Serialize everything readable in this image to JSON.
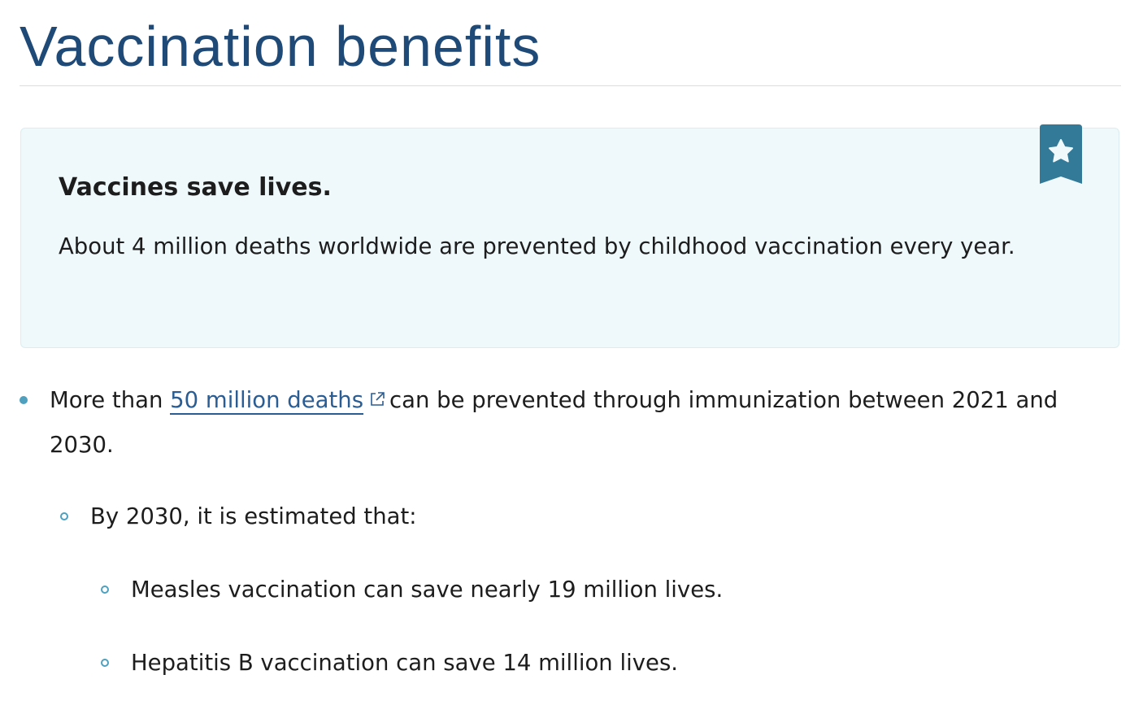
{
  "page_title": "Vaccination benefits",
  "callout": {
    "icon": "bookmark-star-icon",
    "heading": "Vaccines save lives.",
    "text": "About 4 million deaths worldwide are prevented by childhood vaccination every year."
  },
  "list": {
    "item1": {
      "before": "More than",
      "link": "50 million deaths",
      "after": "can be prevented through immunization between 2021 and 2030."
    },
    "sub": {
      "text": "By 2030, it is estimated that:",
      "items": [
        "Measles vaccination can save nearly 19 million lives.",
        "Hepatitis B vaccination can save 14 million lives."
      ]
    }
  },
  "colors": {
    "title": "#1f4a78",
    "accent": "#337a99",
    "link": "#2a5d94",
    "callout_bg": "#eff8fa"
  }
}
